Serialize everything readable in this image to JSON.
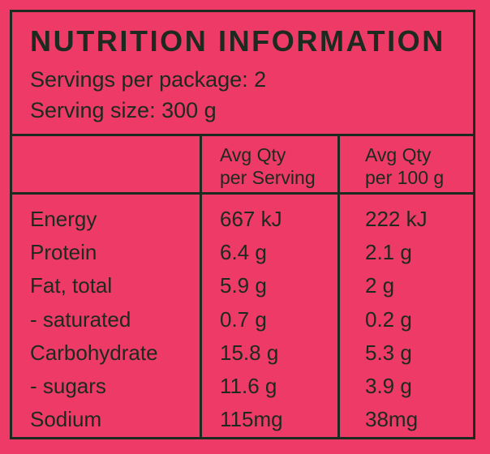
{
  "panel": {
    "title": "NUTRITION INFORMATION",
    "servings_per_package": "Servings per package: 2",
    "serving_size": "Serving size: 300 g"
  },
  "table": {
    "headers": [
      {
        "line1": "Avg Qty",
        "line2": "per Serving"
      },
      {
        "line1": "Avg Qty",
        "line2": "per 100 g"
      }
    ],
    "rows": [
      {
        "nutrient": "Energy",
        "per_serving": "667 kJ",
        "per_100g": "222 kJ"
      },
      {
        "nutrient": "Protein",
        "per_serving": "6.4 g",
        "per_100g": "2.1 g"
      },
      {
        "nutrient": "Fat, total",
        "per_serving": "5.9 g",
        "per_100g": "2 g"
      },
      {
        "nutrient": "- saturated",
        "per_serving": "0.7 g",
        "per_100g": "0.2 g"
      },
      {
        "nutrient": "Carbohydrate",
        "per_serving": "15.8 g",
        "per_100g": "5.3 g"
      },
      {
        "nutrient": "- sugars",
        "per_serving": "11.6 g",
        "per_100g": "3.9 g"
      },
      {
        "nutrient": "Sodium",
        "per_serving": "115mg",
        "per_100g": "38mg"
      }
    ]
  },
  "colors": {
    "background": "#ee3a66",
    "ink": "#1c2a1f"
  }
}
